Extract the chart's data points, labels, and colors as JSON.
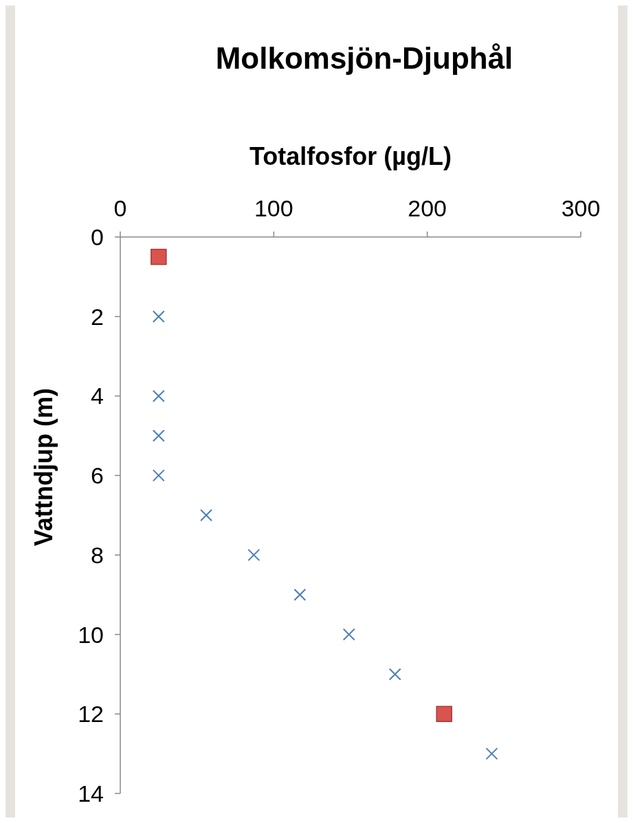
{
  "chart_data": {
    "type": "scatter",
    "title": "Molkomsjön-Djuphål",
    "xlabel": "Totalfosfor (µg/L)",
    "ylabel": "Vattndjup (m)",
    "xlim": [
      0,
      300
    ],
    "xticks": [
      0,
      100,
      200,
      300
    ],
    "ylim": [
      14,
      0
    ],
    "yticks": [
      0,
      2,
      4,
      6,
      8,
      10,
      12,
      14
    ],
    "grid": false,
    "series": [
      {
        "color": "#4a7ebb",
        "marker": "cross",
        "x": [
          25,
          25,
          25,
          25,
          56,
          87,
          117,
          149,
          179,
          242
        ],
        "values": [
          2,
          4,
          5,
          6,
          7,
          8,
          9,
          10,
          11,
          13
        ]
      },
      {
        "color": "#d9534f",
        "marker": "square",
        "x": [
          25,
          211
        ],
        "values": [
          0.5,
          12
        ]
      }
    ]
  }
}
